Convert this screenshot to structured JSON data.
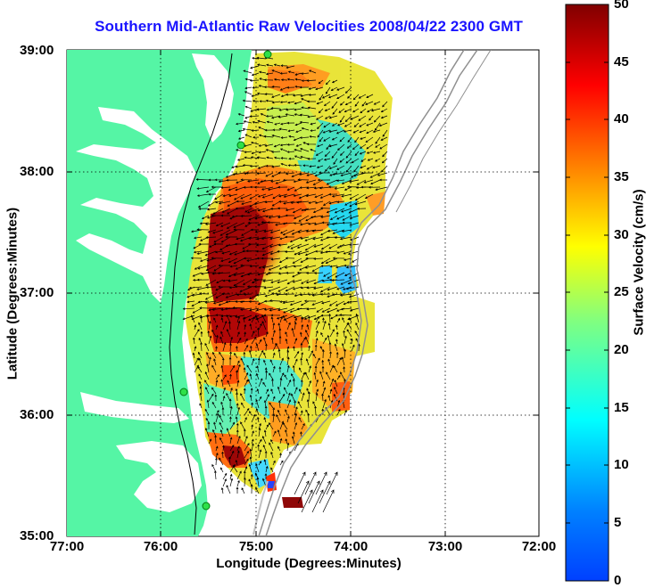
{
  "title": "Southern Mid-Atlantic Raw Velocities 2008/04/22 2300 GMT",
  "xlabel": "Longitude (Degrees:Minutes)",
  "ylabel": "Latitude (Degrees:Minutes)",
  "colorbar_label": "Surface Velocity (cm/s)",
  "x_ticks": [
    "77:00",
    "76:00",
    "75:00",
    "74:00",
    "73:00",
    "72:00"
  ],
  "y_ticks": [
    "39:00",
    "38:00",
    "37:00",
    "36:00",
    "35:00"
  ],
  "colorbar_ticks": [
    "50",
    "45",
    "40",
    "35",
    "30",
    "25",
    "20",
    "15",
    "10",
    "5",
    "0"
  ],
  "chart_data": {
    "type": "heatmap",
    "title": "Southern Mid-Atlantic Raw Velocities 2008/04/22 2300 GMT",
    "xlabel": "Longitude (Degrees:Minutes)",
    "ylabel": "Latitude (Degrees:Minutes)",
    "xlim": [
      "77:00 W",
      "72:00 W"
    ],
    "ylim": [
      "35:00 N",
      "39:00 N"
    ],
    "colorbar": {
      "label": "Surface Velocity (cm/s)",
      "range": [
        0,
        50
      ],
      "colormap": "jet"
    },
    "grid": true,
    "land_color": "#55f5a5",
    "ocean_color": "#ffffff",
    "arrow_color": "#000000",
    "radar_site_color": "#2ee04a",
    "radar_sites": [
      {
        "lon": -74.93,
        "lat": 38.93
      },
      {
        "lon": -75.2,
        "lat": 38.2
      },
      {
        "lon": -75.7,
        "lat": 36.17
      },
      {
        "lon": -75.48,
        "lat": 35.28
      }
    ]
  }
}
